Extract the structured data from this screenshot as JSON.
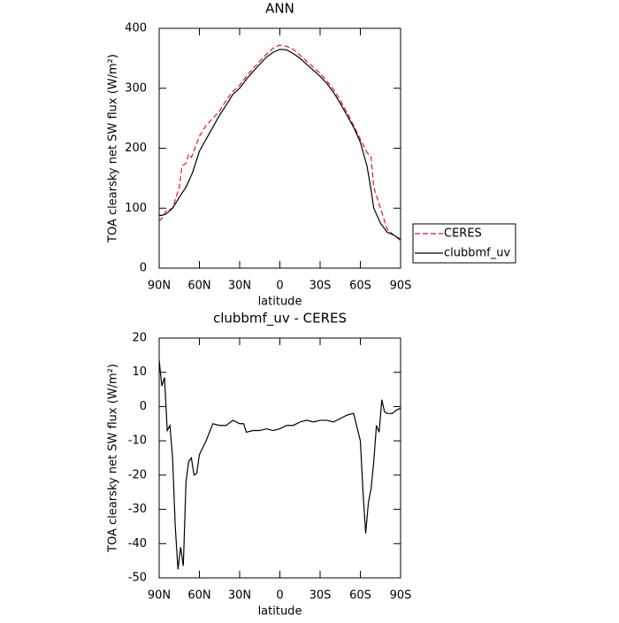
{
  "chart_data": [
    {
      "type": "line",
      "title": "ANN",
      "xlabel": "latitude",
      "ylabel": "TOA clearsky net SW flux (W/m²)",
      "x": [
        90,
        88,
        85,
        80,
        75,
        73,
        70,
        68,
        66,
        65,
        60,
        55,
        50,
        45,
        40,
        35,
        30,
        25,
        20,
        15,
        10,
        5,
        0,
        -5,
        -10,
        -15,
        -20,
        -25,
        -30,
        -35,
        -40,
        -45,
        -50,
        -55,
        -60,
        -65,
        -68,
        -70,
        -75,
        -80,
        -85,
        -90
      ],
      "series": [
        {
          "name": "CERES",
          "color": "#e41a1c",
          "dash": true,
          "values": [
            78,
            83,
            95,
            100,
            135,
            170,
            175,
            190,
            185,
            190,
            220,
            238,
            250,
            262,
            280,
            295,
            305,
            320,
            333,
            345,
            357,
            367,
            372,
            370,
            365,
            355,
            345,
            335,
            325,
            312,
            298,
            280,
            260,
            238,
            215,
            193,
            185,
            135,
            100,
            65,
            55,
            46
          ]
        },
        {
          "name": "clubbmf_uv",
          "color": "#000000",
          "dash": false,
          "values": [
            88,
            88,
            90,
            100,
            118,
            125,
            135,
            145,
            155,
            160,
            195,
            215,
            235,
            255,
            272,
            290,
            300,
            315,
            328,
            340,
            352,
            360,
            365,
            364,
            358,
            350,
            340,
            330,
            320,
            308,
            293,
            275,
            255,
            235,
            210,
            170,
            130,
            100,
            75,
            60,
            55,
            48
          ]
        }
      ],
      "xlim": [
        90,
        -90
      ],
      "ylim": [
        0,
        400
      ],
      "xticks": [
        {
          "value": 90,
          "label": "90N"
        },
        {
          "value": 60,
          "label": "60N"
        },
        {
          "value": 30,
          "label": "30N"
        },
        0,
        {
          "value": -30,
          "label": "30S"
        },
        {
          "value": -60,
          "label": "60S"
        },
        {
          "value": -90,
          "label": "90S"
        }
      ],
      "yticks": [
        0,
        100,
        200,
        300,
        400
      ],
      "legend": "right"
    },
    {
      "type": "line",
      "title": "clubbmf_uv - CERES",
      "xlabel": "latitude",
      "ylabel": "TOA clearsky net SW flux (W/m²)",
      "x": [
        90,
        88,
        86,
        84,
        82,
        80,
        78,
        76,
        74,
        72,
        70,
        68,
        66,
        64,
        62,
        60,
        55,
        50,
        45,
        40,
        35,
        30,
        27,
        25,
        20,
        15,
        10,
        5,
        0,
        -5,
        -10,
        -15,
        -20,
        -25,
        -30,
        -35,
        -40,
        -45,
        -50,
        -55,
        -60,
        -62,
        -64,
        -66,
        -68,
        -70,
        -72,
        -74,
        -76,
        -78,
        -80,
        -84,
        -87,
        -90
      ],
      "series": [
        {
          "color": "#000000",
          "dash": false,
          "values": [
            13.5,
            6,
            8.5,
            -7,
            -5.5,
            -15,
            -35,
            -47.5,
            -41,
            -46.5,
            -22,
            -16,
            -15,
            -20,
            -19.5,
            -14,
            -10,
            -5,
            -5.5,
            -5.5,
            -4,
            -5,
            -5,
            -7.5,
            -7,
            -7,
            -6.5,
            -7,
            -6.5,
            -5.5,
            -5.5,
            -4.5,
            -4,
            -4.5,
            -4,
            -4,
            -4.5,
            -3.5,
            -2.5,
            -2,
            -10,
            -25,
            -37,
            -28,
            -24,
            -16,
            -5.5,
            -7.5,
            2,
            -1.5,
            -2,
            -2,
            -1,
            -0.5
          ]
        }
      ],
      "xlim": [
        90,
        -90
      ],
      "ylim": [
        -50,
        20
      ],
      "xticks": [
        {
          "value": 90,
          "label": "90N"
        },
        {
          "value": 60,
          "label": "60N"
        },
        {
          "value": 30,
          "label": "30N"
        },
        0,
        {
          "value": -30,
          "label": "30S"
        },
        {
          "value": -60,
          "label": "60S"
        },
        {
          "value": -90,
          "label": "90S"
        }
      ],
      "yticks": [
        -50,
        -40,
        -30,
        -20,
        -10,
        0,
        10,
        20
      ]
    }
  ]
}
